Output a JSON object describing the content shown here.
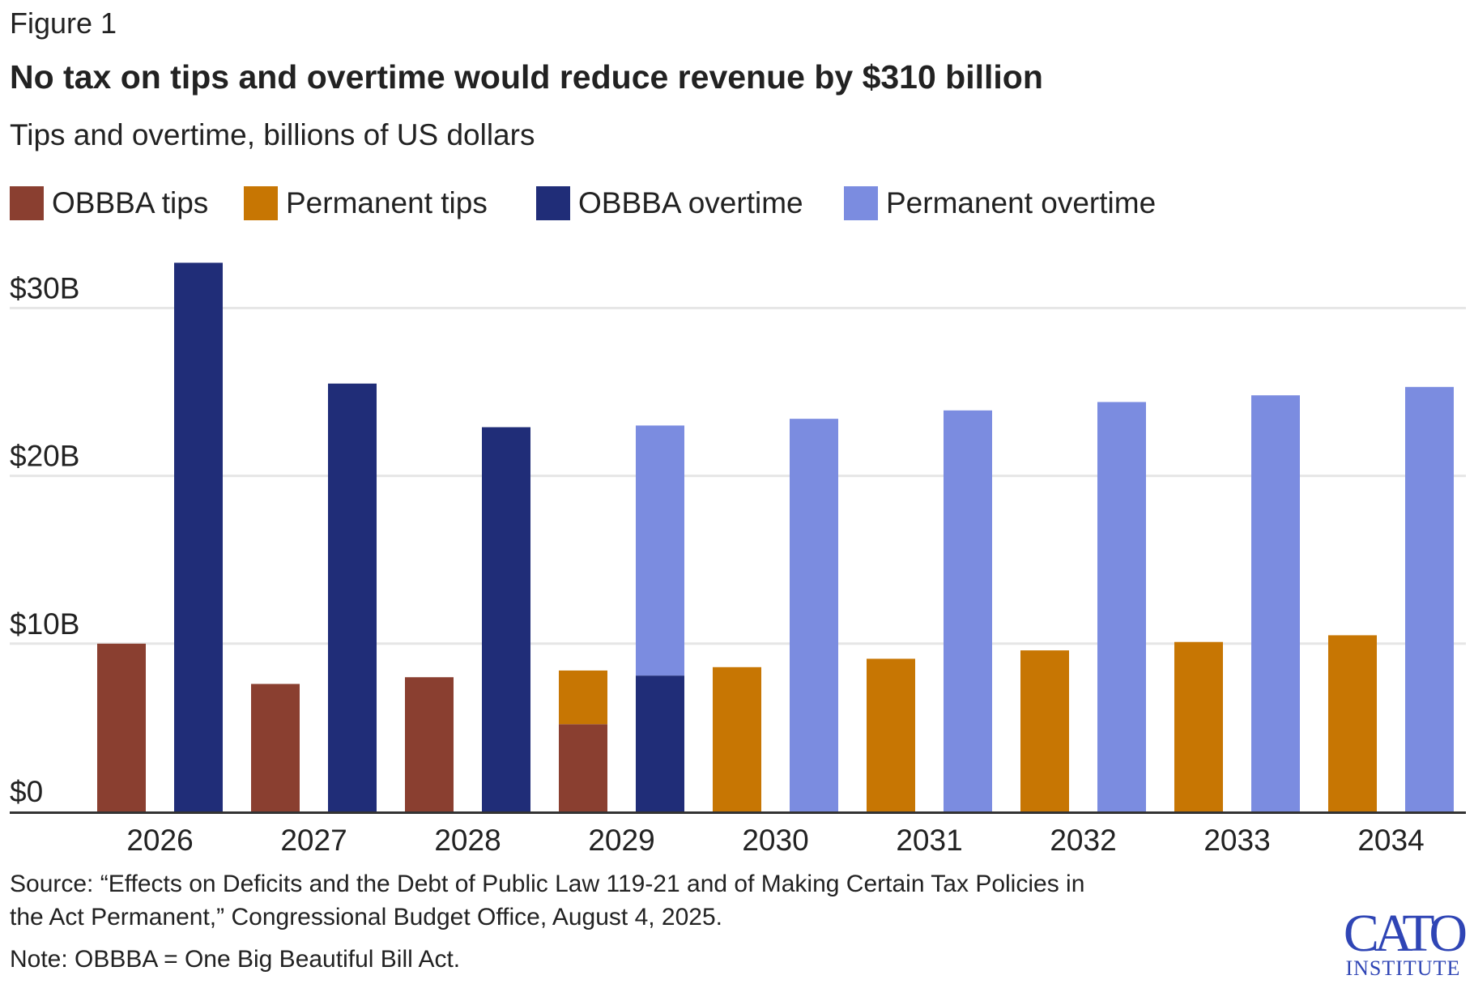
{
  "figure_label": "Figure 1",
  "logo": {
    "name": "CATO",
    "sub": "INSTITUTE"
  },
  "source": [
    "Source: “Effects on Deficits and the Debt of Public Law 119-21 and of Making Certain Tax Policies in",
    "the Act Permanent,” Congressional Budget Office, August 4, 2025."
  ],
  "note": "Note: OBBBA = One Big Beautiful Bill Act.",
  "chart_data": {
    "type": "bar",
    "title": "No tax on tips and overtime would reduce revenue by $310 billion",
    "subtitle": "Tips and overtime, billions of US dollars",
    "categories": [
      "2026",
      "2027",
      "2028",
      "2029",
      "2030",
      "2031",
      "2032",
      "2033",
      "2034"
    ],
    "ylim": [
      0,
      33
    ],
    "yticks": [
      0,
      10,
      20,
      30
    ],
    "ytick_labels": [
      "$0",
      "$10B",
      "$20B",
      "$30B"
    ],
    "grid": true,
    "legend_placement": "top-left",
    "stacks": [
      {
        "name": "tips",
        "series": [
          "OBBBA tips",
          "Permanent tips"
        ]
      },
      {
        "name": "overtime",
        "series": [
          "OBBBA overtime",
          "Permanent overtime"
        ]
      }
    ],
    "series": [
      {
        "name": "OBBBA tips",
        "stack": "tips",
        "color": "#8a3f30",
        "values": [
          10.0,
          7.6,
          8.0,
          5.2,
          0,
          0,
          0,
          0,
          0
        ]
      },
      {
        "name": "Permanent tips",
        "stack": "tips",
        "color": "#c77603",
        "values": [
          0,
          0,
          0,
          3.2,
          8.6,
          9.1,
          9.6,
          10.1,
          10.5
        ]
      },
      {
        "name": "OBBBA overtime",
        "stack": "overtime",
        "color": "#202d78",
        "values": [
          32.7,
          25.5,
          22.9,
          8.1,
          0,
          0,
          0,
          0,
          0
        ]
      },
      {
        "name": "Permanent overtime",
        "stack": "overtime",
        "color": "#7b8ce0",
        "values": [
          0,
          0,
          0,
          14.9,
          23.4,
          23.9,
          24.4,
          24.8,
          25.3
        ]
      }
    ]
  }
}
